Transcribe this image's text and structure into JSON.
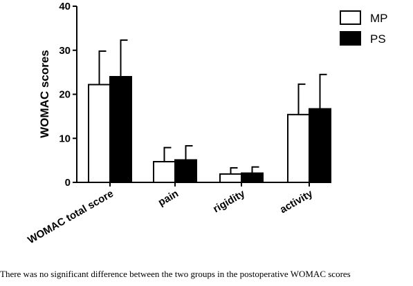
{
  "chart_data": {
    "type": "bar",
    "title": "",
    "xlabel": "",
    "ylabel": "WOMAC scores",
    "ylim": [
      0,
      40
    ],
    "yticks": [
      0,
      10,
      20,
      30,
      40
    ],
    "grid": false,
    "legend_position": "top-right",
    "categories": [
      "WOMAC total score",
      "pain",
      "rigidity",
      "activity"
    ],
    "series": [
      {
        "name": "MP",
        "fill": "#ffffff",
        "values": [
          22.2,
          4.7,
          1.9,
          15.4
        ],
        "error": [
          7.6,
          3.2,
          1.4,
          6.9
        ]
      },
      {
        "name": "PS",
        "fill": "#000000",
        "values": [
          24.0,
          5.1,
          2.1,
          16.7
        ],
        "error": [
          8.3,
          3.2,
          1.4,
          7.8
        ]
      }
    ]
  },
  "caption": "There was no significant difference between the two groups in the postoperative WOMAC scores"
}
